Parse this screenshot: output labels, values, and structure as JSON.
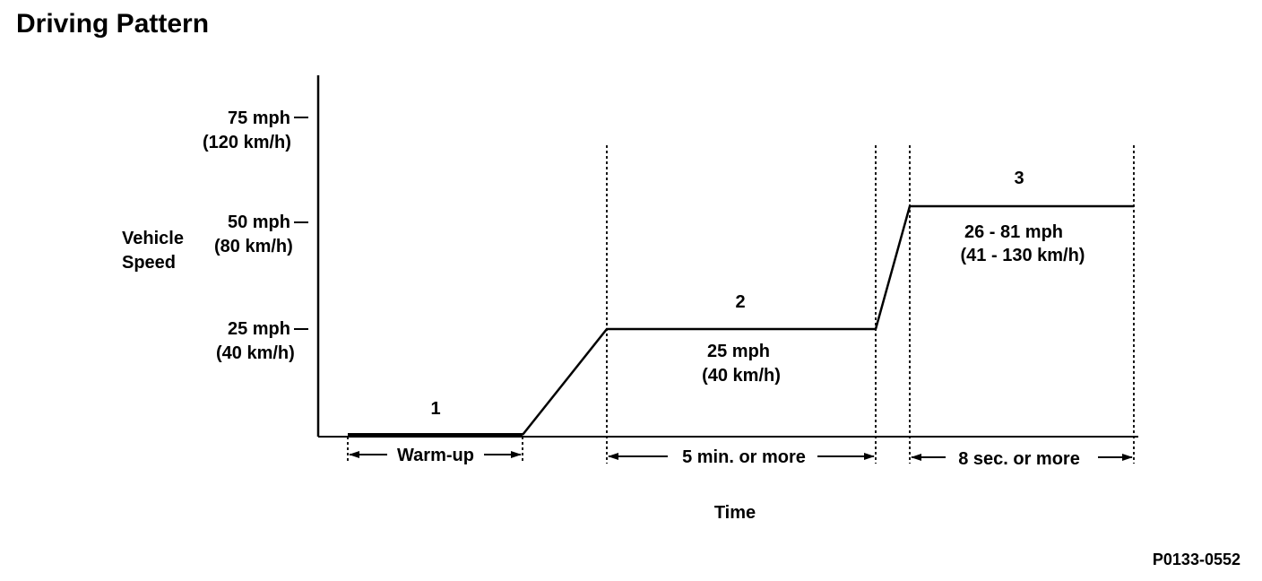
{
  "title": "Driving Pattern",
  "axes": {
    "y_label_lines": [
      "Vehicle",
      "Speed"
    ],
    "x_label": "Time"
  },
  "y_ticks": [
    {
      "mph": "75 mph",
      "kmh": "(120 km/h)"
    },
    {
      "mph": "50 mph",
      "kmh": "(80 km/h)"
    },
    {
      "mph": "25 mph",
      "kmh": "(40 km/h)"
    }
  ],
  "phases": [
    {
      "number": "1",
      "duration": "Warm-up",
      "speed_lines": []
    },
    {
      "number": "2",
      "duration": "5 min. or more",
      "speed_lines": [
        "25 mph",
        "(40 km/h)"
      ]
    },
    {
      "number": "3",
      "duration": "8 sec. or more",
      "speed_lines": [
        "26 - 81 mph",
        "(41 - 130 km/h)"
      ]
    }
  ],
  "reference_code": "P0133-0552",
  "colors": {
    "ink": "#000000",
    "background": "#ffffff"
  }
}
